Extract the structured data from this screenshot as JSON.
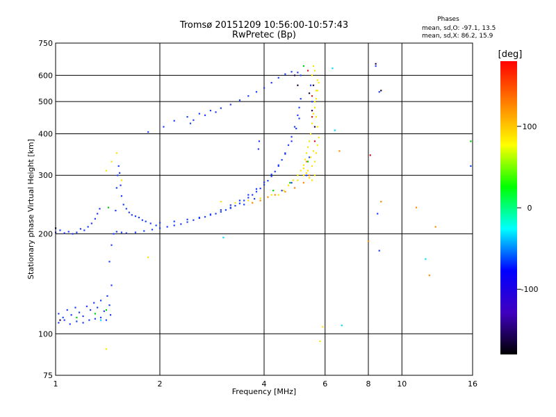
{
  "chart_data": {
    "type": "scatter",
    "title": "Tromsø 20151209 10:56:00-10:57:43",
    "subtitle": "RwPretec (Bp)",
    "xlabel": "Frequency [MHz]",
    "ylabel": "Stationary phase Virtual Height [km]",
    "x_scale": "log",
    "y_scale": "log",
    "xlim": [
      1,
      16
    ],
    "ylim": [
      75,
      750
    ],
    "x_ticks": [
      1,
      2,
      4,
      6,
      8,
      10,
      16
    ],
    "y_ticks": [
      75,
      100,
      200,
      300,
      400,
      500,
      600,
      750
    ],
    "grid": true,
    "phase_stats": {
      "heading": "Phases",
      "line_o": "mean, sd,O: -97.1, 13.5",
      "line_x": "mean, sd,X:  86.2, 15.9"
    },
    "colorbar": {
      "label": "[deg]",
      "range": [
        -180,
        180
      ],
      "ticks": [
        100,
        0,
        -100
      ],
      "colors": [
        "#ff0000",
        "#ff8000",
        "#ffff00",
        "#00ff00",
        "#00ffff",
        "#0000ff",
        "#4000c0",
        "#000000"
      ]
    },
    "series": [
      {
        "color": "#1a3cff",
        "points": [
          [
            1.0,
            202
          ],
          [
            1.03,
            205
          ],
          [
            1.06,
            201
          ],
          [
            1.09,
            203
          ],
          [
            1.12,
            200
          ],
          [
            1.15,
            202
          ],
          [
            1.18,
            207
          ],
          [
            1.21,
            205
          ],
          [
            1.24,
            210
          ],
          [
            1.27,
            215
          ],
          [
            1.3,
            222
          ],
          [
            1.32,
            230
          ],
          [
            1.34,
            238
          ],
          [
            1.02,
            115
          ],
          [
            1.05,
            112
          ],
          [
            1.08,
            118
          ],
          [
            1.11,
            114
          ],
          [
            1.14,
            120
          ],
          [
            1.17,
            116
          ],
          [
            1.2,
            113
          ],
          [
            1.23,
            121
          ],
          [
            1.26,
            118
          ],
          [
            1.29,
            124
          ],
          [
            1.32,
            120
          ],
          [
            1.35,
            126
          ],
          [
            1.38,
            117
          ],
          [
            1.41,
            130
          ],
          [
            1.43,
            122
          ],
          [
            1.45,
            140
          ],
          [
            1.02,
            108
          ],
          [
            1.06,
            110
          ],
          [
            1.1,
            107
          ],
          [
            1.15,
            109
          ],
          [
            1.2,
            108
          ],
          [
            1.25,
            110
          ],
          [
            1.3,
            111
          ],
          [
            1.35,
            112
          ],
          [
            1.4,
            110
          ],
          [
            1.44,
            114
          ],
          [
            1.43,
            165
          ],
          [
            1.45,
            185
          ],
          [
            1.47,
            200
          ],
          [
            1.49,
            235
          ],
          [
            1.5,
            275
          ],
          [
            1.51,
            300
          ],
          [
            1.52,
            320
          ],
          [
            1.53,
            305
          ],
          [
            1.54,
            280
          ],
          [
            1.55,
            260
          ],
          [
            1.57,
            245
          ],
          [
            1.6,
            238
          ],
          [
            1.63,
            232
          ],
          [
            1.66,
            228
          ],
          [
            1.7,
            226
          ],
          [
            1.74,
            224
          ],
          [
            1.78,
            220
          ],
          [
            1.82,
            218
          ],
          [
            1.88,
            215
          ],
          [
            1.95,
            212
          ],
          [
            1.5,
            203
          ],
          [
            1.55,
            202
          ],
          [
            1.6,
            201
          ],
          [
            1.7,
            202
          ],
          [
            1.8,
            204
          ],
          [
            1.9,
            206
          ],
          [
            2.0,
            208
          ],
          [
            2.1,
            210
          ],
          [
            2.2,
            212
          ],
          [
            2.3,
            214
          ],
          [
            2.4,
            217
          ],
          [
            2.5,
            220
          ],
          [
            2.6,
            223
          ],
          [
            2.7,
            225
          ],
          [
            2.8,
            228
          ],
          [
            2.9,
            230
          ],
          [
            3.0,
            233
          ],
          [
            3.1,
            236
          ],
          [
            3.2,
            239
          ],
          [
            3.3,
            243
          ],
          [
            3.4,
            247
          ],
          [
            3.5,
            252
          ],
          [
            3.6,
            257
          ],
          [
            3.7,
            262
          ],
          [
            3.8,
            268
          ],
          [
            3.9,
            274
          ],
          [
            4.0,
            281
          ],
          [
            4.1,
            289
          ],
          [
            4.2,
            298
          ],
          [
            4.3,
            308
          ],
          [
            4.4,
            320
          ],
          [
            4.5,
            334
          ],
          [
            4.6,
            350
          ],
          [
            4.7,
            370
          ],
          [
            4.8,
            392
          ],
          [
            4.9,
            420
          ],
          [
            5.0,
            455
          ],
          [
            5.05,
            480
          ],
          [
            5.1,
            510
          ],
          [
            2.0,
            216
          ],
          [
            2.2,
            218
          ],
          [
            2.4,
            221
          ],
          [
            2.6,
            224
          ],
          [
            2.8,
            229
          ],
          [
            3.0,
            236
          ],
          [
            3.2,
            244
          ],
          [
            3.4,
            252
          ],
          [
            3.6,
            262
          ],
          [
            3.8,
            273
          ],
          [
            4.0,
            286
          ],
          [
            4.2,
            302
          ],
          [
            4.4,
            322
          ],
          [
            4.6,
            348
          ],
          [
            4.8,
            380
          ],
          [
            4.95,
            415
          ],
          [
            5.05,
            445
          ],
          [
            2.05,
            420
          ],
          [
            2.2,
            438
          ],
          [
            2.4,
            450
          ],
          [
            2.6,
            460
          ],
          [
            2.8,
            470
          ],
          [
            3.0,
            478
          ],
          [
            3.2,
            490
          ],
          [
            3.4,
            505
          ],
          [
            3.6,
            520
          ],
          [
            3.8,
            535
          ],
          [
            4.0,
            550
          ],
          [
            4.2,
            570
          ],
          [
            4.4,
            590
          ],
          [
            4.6,
            605
          ],
          [
            4.8,
            615
          ],
          [
            5.0,
            612
          ],
          [
            5.1,
            600
          ],
          [
            2.5,
            440
          ],
          [
            2.7,
            455
          ],
          [
            2.9,
            465
          ],
          [
            1.85,
            405
          ],
          [
            2.45,
            430
          ],
          [
            3.85,
            360
          ],
          [
            3.87,
            380
          ],
          [
            3.2,
            240
          ],
          [
            3.5,
            245
          ],
          [
            3.75,
            255
          ],
          [
            4.5,
            270
          ],
          [
            4.8,
            285
          ],
          [
            5.3,
            300
          ],
          [
            5.4,
            340
          ],
          [
            5.45,
            560
          ],
          [
            5.5,
            500
          ],
          [
            8.4,
            640
          ],
          [
            8.6,
            535
          ],
          [
            8.6,
            178
          ],
          [
            8.5,
            230
          ],
          [
            15.8,
            320
          ]
        ]
      },
      {
        "color": "#ffe400",
        "points": [
          [
            4.4,
            262
          ],
          [
            4.55,
            270
          ],
          [
            4.7,
            280
          ],
          [
            4.85,
            290
          ],
          [
            5.0,
            300
          ],
          [
            5.1,
            310
          ],
          [
            5.2,
            322
          ],
          [
            5.25,
            335
          ],
          [
            5.3,
            350
          ],
          [
            5.35,
            365
          ],
          [
            5.4,
            380
          ],
          [
            5.45,
            400
          ],
          [
            5.5,
            430
          ],
          [
            5.55,
            460
          ],
          [
            5.6,
            500
          ],
          [
            5.65,
            540
          ],
          [
            5.7,
            580
          ],
          [
            5.6,
            620
          ],
          [
            5.55,
            640
          ],
          [
            5.5,
            600
          ],
          [
            5.0,
            290
          ],
          [
            5.2,
            300
          ],
          [
            5.35,
            310
          ],
          [
            5.5,
            320
          ],
          [
            5.6,
            330
          ],
          [
            5.65,
            350
          ],
          [
            5.7,
            370
          ],
          [
            5.75,
            390
          ],
          [
            5.7,
            420
          ],
          [
            5.65,
            450
          ],
          [
            5.6,
            480
          ],
          [
            5.65,
            510
          ],
          [
            5.7,
            540
          ],
          [
            5.75,
            570
          ],
          [
            5.6,
            300
          ],
          [
            5.5,
            290
          ],
          [
            5.4,
            295
          ],
          [
            5.3,
            305
          ],
          [
            5.2,
            315
          ],
          [
            5.45,
            340
          ],
          [
            5.55,
            355
          ],
          [
            3.0,
            250
          ],
          [
            3.3,
            248
          ],
          [
            3.6,
            252
          ],
          [
            3.9,
            256
          ],
          [
            4.2,
            262
          ],
          [
            1.4,
            310
          ],
          [
            1.45,
            330
          ],
          [
            1.5,
            350
          ],
          [
            1.85,
            170
          ],
          [
            5.8,
            95
          ],
          [
            5.9,
            105
          ],
          [
            1.4,
            90
          ],
          [
            1.55,
            290
          ]
        ]
      },
      {
        "color": "#ff8a00",
        "points": [
          [
            3.7,
            248
          ],
          [
            3.9,
            252
          ],
          [
            4.1,
            258
          ],
          [
            4.3,
            262
          ],
          [
            4.6,
            268
          ],
          [
            4.9,
            275
          ],
          [
            5.2,
            285
          ],
          [
            5.4,
            300
          ],
          [
            5.3,
            330
          ],
          [
            6.6,
            355
          ],
          [
            8.0,
            190
          ],
          [
            8.7,
            250
          ],
          [
            11.0,
            240
          ],
          [
            12.0,
            150
          ],
          [
            12.5,
            210
          ]
        ]
      },
      {
        "color": "#00d000",
        "points": [
          [
            1.15,
            112
          ],
          [
            1.3,
            115
          ],
          [
            1.4,
            118
          ],
          [
            1.42,
            240
          ],
          [
            4.25,
            270
          ],
          [
            4.75,
            285
          ],
          [
            5.35,
            330
          ],
          [
            15.8,
            380
          ],
          [
            5.2,
            640
          ]
        ]
      },
      {
        "color": "#00d8ff",
        "points": [
          [
            3.05,
            195
          ],
          [
            6.7,
            106
          ],
          [
            6.3,
            630
          ],
          [
            6.4,
            410
          ],
          [
            11.7,
            168
          ],
          [
            1.35,
            110
          ]
        ]
      },
      {
        "color": "#d01818",
        "points": [
          [
            5.35,
            620
          ],
          [
            5.5,
            520
          ],
          [
            5.5,
            450
          ],
          [
            5.6,
            380
          ],
          [
            8.1,
            345
          ]
        ]
      },
      {
        "color": "#220044",
        "points": [
          [
            5.4,
            530
          ],
          [
            5.5,
            470
          ],
          [
            5.55,
            560
          ],
          [
            5.6,
            420
          ],
          [
            8.4,
            650
          ],
          [
            8.7,
            540
          ],
          [
            1.0,
            208
          ],
          [
            1.03,
            110
          ],
          [
            4.9,
            600
          ],
          [
            5.0,
            560
          ]
        ]
      }
    ]
  }
}
